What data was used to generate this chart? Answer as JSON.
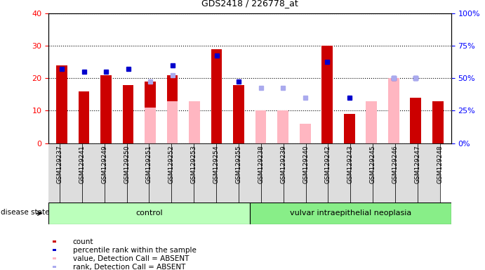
{
  "title": "GDS2418 / 226778_at",
  "samples": [
    "GSM129237",
    "GSM129241",
    "GSM129249",
    "GSM129250",
    "GSM129251",
    "GSM129252",
    "GSM129253",
    "GSM129254",
    "GSM129255",
    "GSM129238",
    "GSM129239",
    "GSM129240",
    "GSM129242",
    "GSM129243",
    "GSM129245",
    "GSM129246",
    "GSM129247",
    "GSM129248"
  ],
  "count_values": [
    24,
    16,
    21,
    18,
    19,
    21,
    null,
    29,
    18,
    null,
    null,
    null,
    30,
    9,
    13,
    null,
    14,
    13
  ],
  "pct_rank_values": [
    23,
    22,
    22,
    23,
    null,
    24,
    null,
    27,
    19,
    null,
    null,
    null,
    25,
    14,
    null,
    20,
    20,
    null
  ],
  "absent_value_values": [
    null,
    null,
    null,
    null,
    11,
    13,
    13,
    null,
    null,
    10,
    10,
    6,
    null,
    null,
    13,
    20,
    null,
    null
  ],
  "absent_rank_values": [
    null,
    null,
    null,
    null,
    19,
    21,
    null,
    null,
    null,
    17,
    17,
    14,
    null,
    null,
    null,
    20,
    20,
    null
  ],
  "ctrl_n": 9,
  "neo_n": 9,
  "ylim_left": [
    0,
    40
  ],
  "ylim_right": [
    0,
    100
  ],
  "yticks_left": [
    0,
    10,
    20,
    30,
    40
  ],
  "yticks_right": [
    0,
    25,
    50,
    75,
    100
  ],
  "ytick_labels_right": [
    "0%",
    "25%",
    "50%",
    "75%",
    "100%"
  ],
  "bar_color_red": "#CC0000",
  "bar_color_pink": "#FFB6C1",
  "dot_color_blue": "#0000CC",
  "dot_color_lightblue": "#AAAAEE",
  "group_bg_control": "#BBFFBB",
  "group_bg_neo": "#88EE88",
  "tick_bg": "#DDDDDD",
  "legend_items": [
    {
      "color": "#CC0000",
      "label": "count"
    },
    {
      "color": "#0000CC",
      "label": "percentile rank within the sample"
    },
    {
      "color": "#FFB6C1",
      "label": "value, Detection Call = ABSENT"
    },
    {
      "color": "#AAAAEE",
      "label": "rank, Detection Call = ABSENT"
    }
  ],
  "disease_state_label": "disease state",
  "group_labels": [
    "control",
    "vulvar intraepithelial neoplasia"
  ],
  "bar_width": 0.5
}
